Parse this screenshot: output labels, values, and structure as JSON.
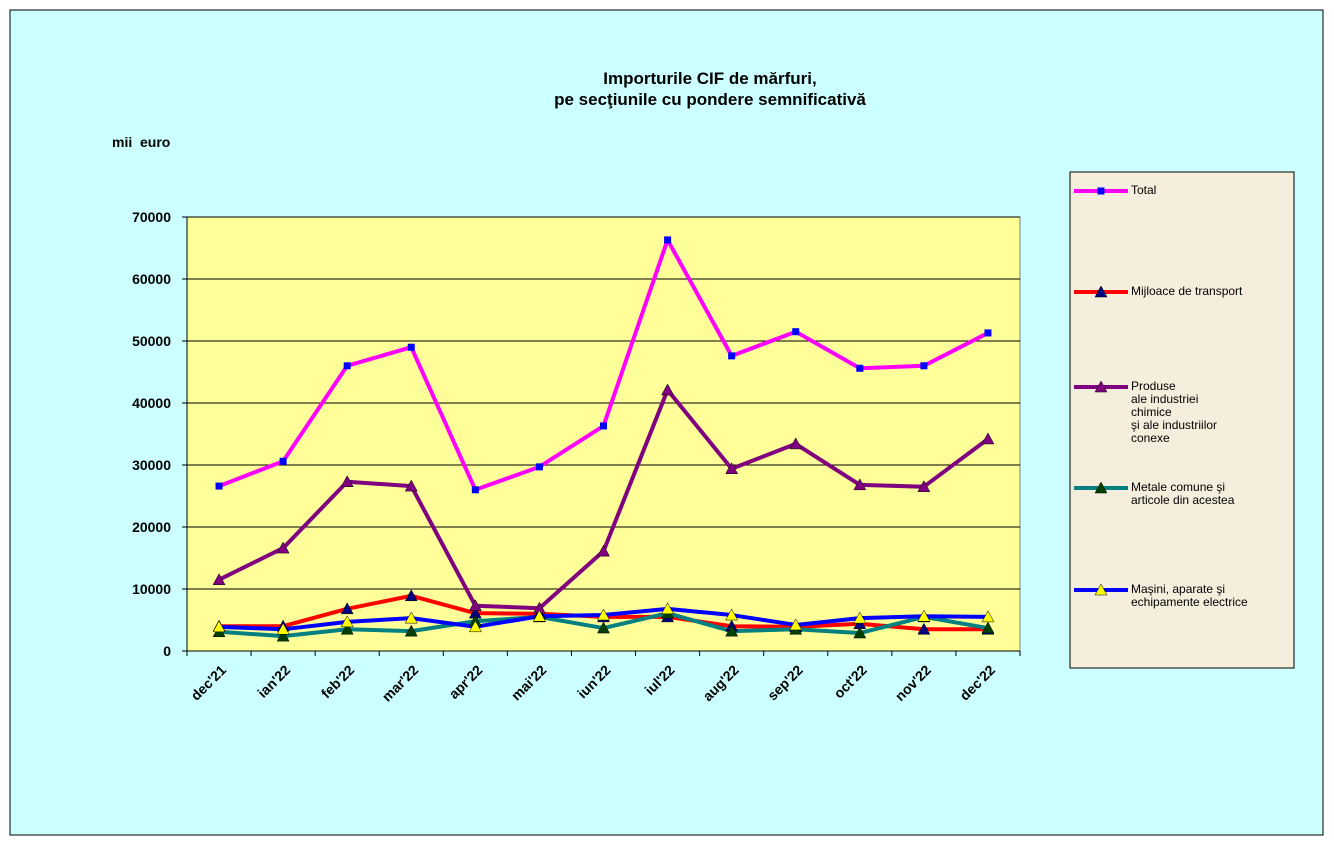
{
  "chart_data": {
    "type": "line",
    "title": "Importurile CIF de mărfuri,\npe secţiunile cu pondere semnificativă",
    "y_label": "mii  euro",
    "categories": [
      "dec'21",
      "ian'22",
      "feb'22",
      "mar'22",
      "apr'22",
      "mai'22",
      "iun'22",
      "iul'22",
      "aug'22",
      "sep'22",
      "oct'22",
      "nov'22",
      "dec'22"
    ],
    "ylim": [
      0,
      70000
    ],
    "yticks": [
      0,
      10000,
      20000,
      30000,
      40000,
      50000,
      60000,
      70000
    ],
    "grid": true,
    "legend": "right",
    "series": [
      {
        "name": "Total",
        "color": "#ff00ff",
        "marker": "square",
        "marker_color": "#0000ff",
        "values": [
          26600,
          30600,
          46000,
          49000,
          26000,
          29700,
          36300,
          66300,
          47600,
          51500,
          45600,
          46000,
          51300
        ]
      },
      {
        "name": "Mijloace de transport",
        "color": "#ff0000",
        "marker": "triangle",
        "marker_color": "#000080",
        "values": [
          4000,
          4000,
          6800,
          8900,
          6100,
          6000,
          5500,
          5500,
          4000,
          3900,
          4400,
          3500,
          3500
        ]
      },
      {
        "name": "Produse\nale industriei\nchimice\nşi ale industriilor\nconexe",
        "color": "#800080",
        "marker": "triangle",
        "marker_color": "#800080",
        "values": [
          11500,
          16600,
          27300,
          26600,
          7300,
          6900,
          16100,
          42100,
          29400,
          33400,
          26800,
          26500,
          34200
        ]
      },
      {
        "name": "Metale comune şi\narticole din acestea",
        "color": "#008080",
        "marker": "triangle",
        "marker_color": "#004000",
        "values": [
          3100,
          2400,
          3500,
          3200,
          4800,
          5500,
          3700,
          6100,
          3200,
          3500,
          2900,
          5500,
          3700
        ]
      },
      {
        "name": "Maşini, aparate şi\nechipamente electrice",
        "color": "#0000ff",
        "marker": "triangle",
        "marker_color": "#ffff00",
        "values": [
          3900,
          3500,
          4700,
          5300,
          3900,
          5600,
          5800,
          6800,
          5800,
          4200,
          5300,
          5600,
          5500
        ]
      }
    ]
  }
}
